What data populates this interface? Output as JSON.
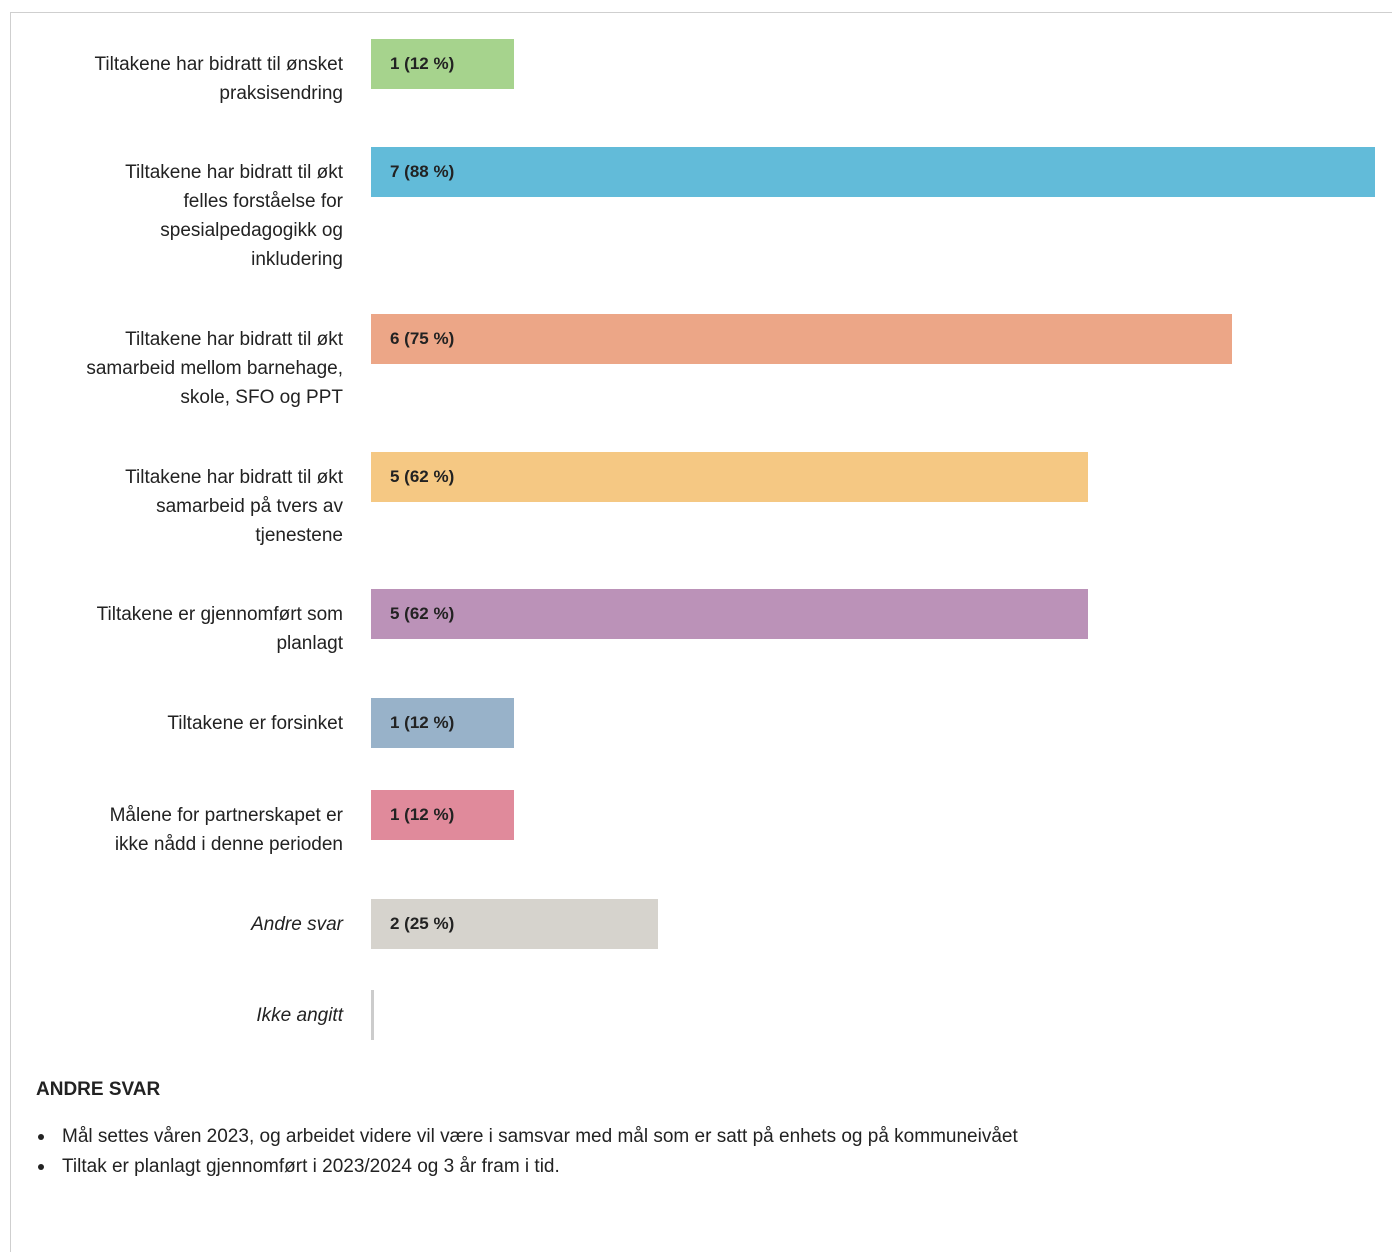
{
  "chart_data": {
    "type": "bar",
    "orientation": "horizontal",
    "xlim": [
      0,
      8
    ],
    "categories": [
      "Tiltakene har bidratt til ønsket praksisendring",
      "Tiltakene har bidratt til økt felles forståelse for spesialpedagogikk og inkludering",
      "Tiltakene har bidratt til økt samarbeid mellom barnehage, skole, SFO og PPT",
      "Tiltakene har bidratt til økt samarbeid på tvers av tjenestene",
      "Tiltakene er gjennomført som planlagt",
      "Tiltakene er forsinket",
      "Målene for partnerskapet er ikke nådd i denne perioden",
      "Andre svar",
      "Ikke angitt"
    ],
    "values": [
      1,
      7,
      6,
      5,
      5,
      1,
      1,
      2,
      0
    ],
    "percents": [
      12,
      88,
      75,
      62,
      62,
      12,
      12,
      25,
      0
    ],
    "value_labels": [
      "1 (12 %)",
      "7 (88 %)",
      "6 (75 %)",
      "5 (62 %)",
      "5 (62 %)",
      "1 (12 %)",
      "1 (12 %)",
      "2 (25 %)",
      ""
    ],
    "colors": [
      "#a6d38d",
      "#62bbd9",
      "#eca687",
      "#f5c883",
      "#bb92b8",
      "#98b2c9",
      "#e08a9b",
      "#d6d3cd",
      "#cccccc"
    ],
    "italic_categories": [
      false,
      false,
      false,
      false,
      false,
      false,
      false,
      true,
      true
    ],
    "title": "",
    "xlabel": "",
    "ylabel": ""
  },
  "other_answers": {
    "title": "ANDRE SVAR",
    "items": [
      "Mål settes våren 2023, og arbeidet videre vil være i samsvar med mål som er satt på enhets og på kommuneivået",
      "Tiltak er planlagt gjennomført i 2023/2024 og 3 år fram i tid."
    ]
  }
}
